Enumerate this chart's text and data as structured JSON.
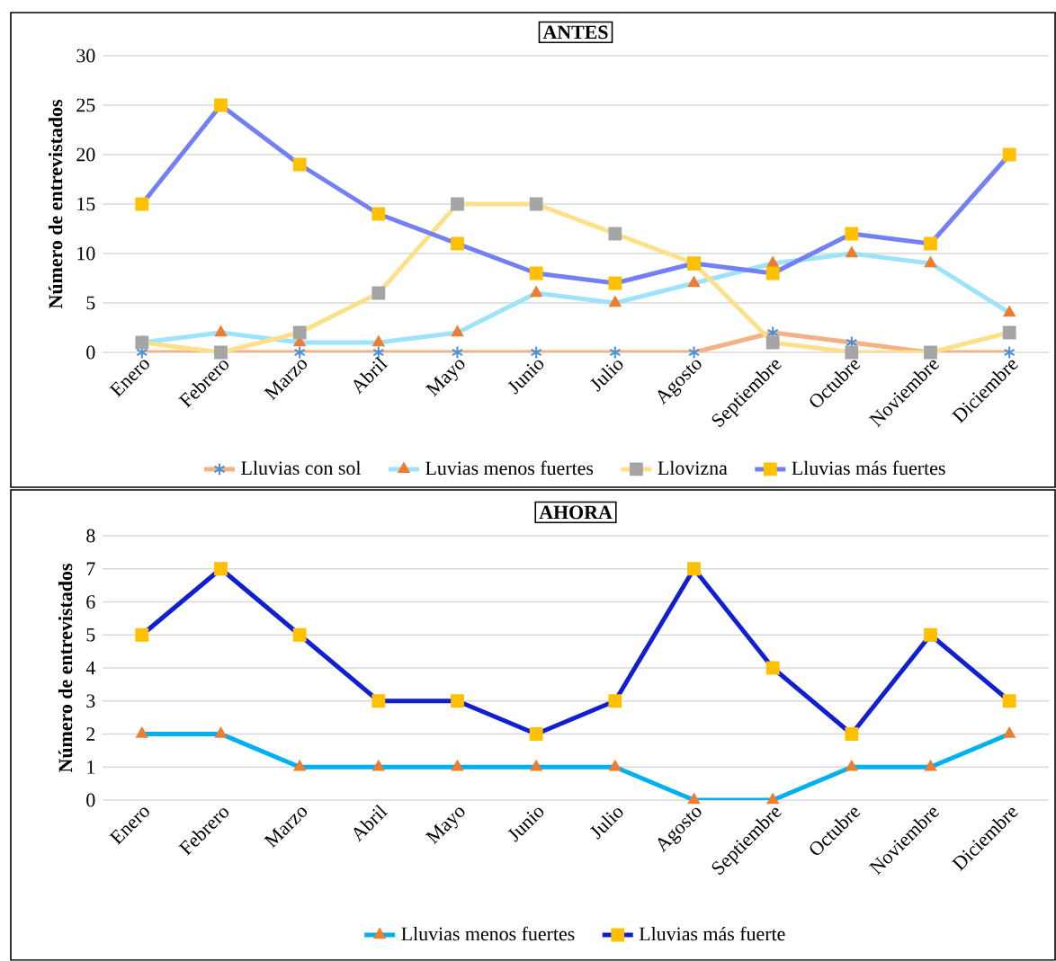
{
  "chart_data": [
    {
      "type": "line",
      "title": "ANTES",
      "ylabel": "Número de entrevistados",
      "categories": [
        "Enero",
        "Febrero",
        "Marzo",
        "Abril",
        "Mayo",
        "Junio",
        "Julio",
        "Agosto",
        "Septiembre",
        "Octubre",
        "Noviembre",
        "Diciembre"
      ],
      "series": [
        {
          "name": "Lluvias con sol",
          "color": "#f4b183",
          "marker": "cross",
          "colors": [
            "#4a8fd9",
            "#4a8fd9",
            "#4a8fd9",
            "#4a8fd9",
            "#4a8fd9",
            "#4a8fd9",
            "#4a8fd9",
            "#4a8fd9",
            "#4a8fd9",
            "#4a8fd9",
            "#4a8fd9",
            "#4a8fd9"
          ],
          "values": [
            0,
            0,
            0,
            0,
            0,
            0,
            0,
            0,
            2,
            1,
            0,
            0
          ]
        },
        {
          "name": "Luvias menos fuertes",
          "color": "#9de3fb",
          "marker": "triangle",
          "colors": [
            "#ed7d31",
            "#ed7d31",
            "#ed7d31",
            "#ed7d31",
            "#ed7d31",
            "#ed7d31",
            "#ed7d31",
            "#ed7d31",
            "#ed7d31",
            "#ed7d31",
            "#ed7d31",
            "#ed7d31"
          ],
          "values": [
            1,
            2,
            1,
            1,
            2,
            6,
            5,
            7,
            9,
            10,
            9,
            4
          ]
        },
        {
          "name": "Llovizna",
          "color": "#ffe08a",
          "marker": "square",
          "colors": [
            "#a5a5a5",
            "#a5a5a5",
            "#a5a5a5",
            "#a5a5a5",
            "#a5a5a5",
            "#a5a5a5",
            "#a5a5a5",
            "#a5a5a5",
            "#a5a5a5",
            "#a5a5a5",
            "#a5a5a5",
            "#a5a5a5"
          ],
          "values": [
            1,
            0,
            2,
            6,
            15,
            15,
            12,
            9,
            1,
            0,
            0,
            2
          ]
        },
        {
          "name": "Lluvias más fuertes",
          "color": "#7380f5",
          "marker": "square",
          "colors": [
            "#ffc000",
            "#ffc000",
            "#ffc000",
            "#ffc000",
            "#ffc000",
            "#ffc000",
            "#ffc000",
            "#ffc000",
            "#ffc000",
            "#ffc000",
            "#ffc000",
            "#ffc000"
          ],
          "values": [
            15,
            25,
            19,
            14,
            11,
            8,
            7,
            9,
            8,
            12,
            11,
            20
          ]
        }
      ],
      "ylim": [
        0,
        30
      ],
      "yticks": [
        0,
        5,
        10,
        15,
        20,
        25,
        30
      ],
      "grid": "y",
      "legend": "bottom",
      "line_style": "solid"
    },
    {
      "type": "line",
      "title": "AHORA",
      "ylabel": "Número de entrevistados",
      "categories": [
        "Enero",
        "Febrero",
        "Marzo",
        "Abril",
        "Mayo",
        "Junio",
        "Julio",
        "Agosto",
        "Septiembre",
        "Octubre",
        "Noviembre",
        "Diciembre"
      ],
      "series": [
        {
          "name": "Lluvias menos fuertes",
          "color": "#00b0f0",
          "marker": "triangle",
          "colors": [
            "#ed7d31",
            "#ed7d31",
            "#ed7d31",
            "#ed7d31",
            "#ed7d31",
            "#ed7d31",
            "#ed7d31",
            "#ed7d31",
            "#ed7d31",
            "#ed7d31",
            "#ed7d31",
            "#ed7d31"
          ],
          "values": [
            2,
            2,
            1,
            1,
            1,
            1,
            1,
            0,
            0,
            1,
            1,
            2
          ]
        },
        {
          "name": "Lluvias más fuerte",
          "color": "#1020d0",
          "marker": "square",
          "colors": [
            "#ffc000",
            "#ffc000",
            "#ffc000",
            "#ffc000",
            "#ffc000",
            "#ffc000",
            "#ffc000",
            "#ffc000",
            "#ffc000",
            "#ffc000",
            "#ffc000",
            "#ffc000"
          ],
          "values": [
            5,
            7,
            5,
            3,
            3,
            2,
            3,
            7,
            4,
            2,
            5,
            3
          ]
        }
      ],
      "ylim": [
        0,
        8
      ],
      "yticks": [
        0,
        1,
        2,
        3,
        4,
        5,
        6,
        7,
        8
      ],
      "grid": "y",
      "legend": "bottom",
      "line_style": "solid"
    }
  ]
}
